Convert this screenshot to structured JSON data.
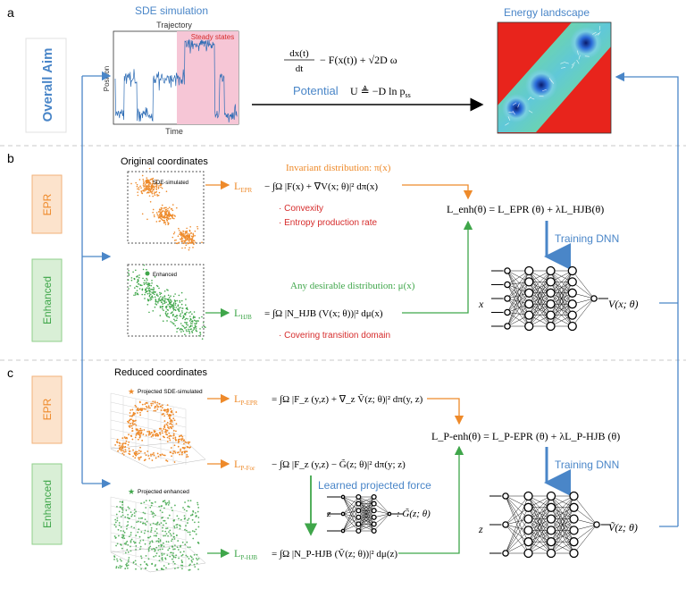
{
  "colors": {
    "blue": "#4a86c8",
    "orange": "#ee8a2a",
    "green": "#3fa64a",
    "red": "#d62c2c",
    "box_orange_fill": "#fce3cc",
    "box_green_fill": "#d9efd6",
    "pink": "#f6c6d6"
  },
  "panel_a": {
    "letter": "a",
    "aim_label": "Overall Aim",
    "sde_title": "SDE simulation",
    "trajectory": "Trajectory",
    "steady": "Steady states",
    "ylabel": "Position",
    "xlabel": "Time",
    "eq1_lhs_num": "dx(t)",
    "eq1_lhs_den": "dt",
    "eq1_rhs": "− F(x(t)) + √2D ω",
    "potential_label": "Potential",
    "potential_expr": "U ≜ −D ln p",
    "potential_sub": "ss",
    "energy_title": "Energy landscape"
  },
  "panel_b": {
    "letter": "b",
    "side_top": "EPR",
    "side_bottom": "Enhanced",
    "orig_coords": "Original coordinates",
    "legend_sde": "SDE-simulated",
    "legend_enh": "Enhanced",
    "invariant": "Invariant distribution: π(x)",
    "l_epr": "L",
    "l_epr_sub": "EPR",
    "eq_epr": "− ∫Ω |F(x) + ∇V(x; θ)|² dπ(x)",
    "bullet1": "· Convexity",
    "bullet2": "· Entropy production rate",
    "desirable": "Any desirable distribution: μ(x)",
    "l_hjb": "L",
    "l_hjb_sub": "HJB",
    "eq_hjb": "= ∫Ω |N_HJB (V(x; θ))|² dμ(x)",
    "bullet3": "· Covering transition domain",
    "lenh": "L_enh(θ) = L_EPR (θ) + λL_HJB(θ)",
    "training": "Training DNN",
    "net_in": "x",
    "net_out": "V(x; θ)"
  },
  "panel_c": {
    "letter": "c",
    "side_top": "EPR",
    "side_bottom": "Enhanced",
    "reduced": "Reduced coordinates",
    "legend_sde": "Projected SDE-simulated",
    "legend_enh": "Projected enhanced",
    "l_pepr": "L",
    "l_pepr_sub": "P-EPR",
    "eq_pepr": "= ∫Ω |F_z (y,z) + ∇_z Ṽ(z; θ)|² dπ(y, z)",
    "l_pfor": "L",
    "l_pfor_sub": "P-For",
    "eq_pfor": "− ∫Ω |F_z (y,z) − G̃(z; θ)|² dπ(y; z)",
    "learned": "Learned projected force",
    "z_in": "z",
    "g_out": ": G̃(z; θ)",
    "l_phjb": "L",
    "l_phjb_sub": "P-HJB",
    "eq_phjb": "= ∫Ω |N_P-HJB (Ṽ(z; θ))|² dμ(z)",
    "lpenh": "L_P-enh(θ) = L_P-EPR (θ) + λL_P-HJB (θ)",
    "training": "Training DNN",
    "net_in": "z",
    "net_out": "Ṽ(z; θ)"
  }
}
